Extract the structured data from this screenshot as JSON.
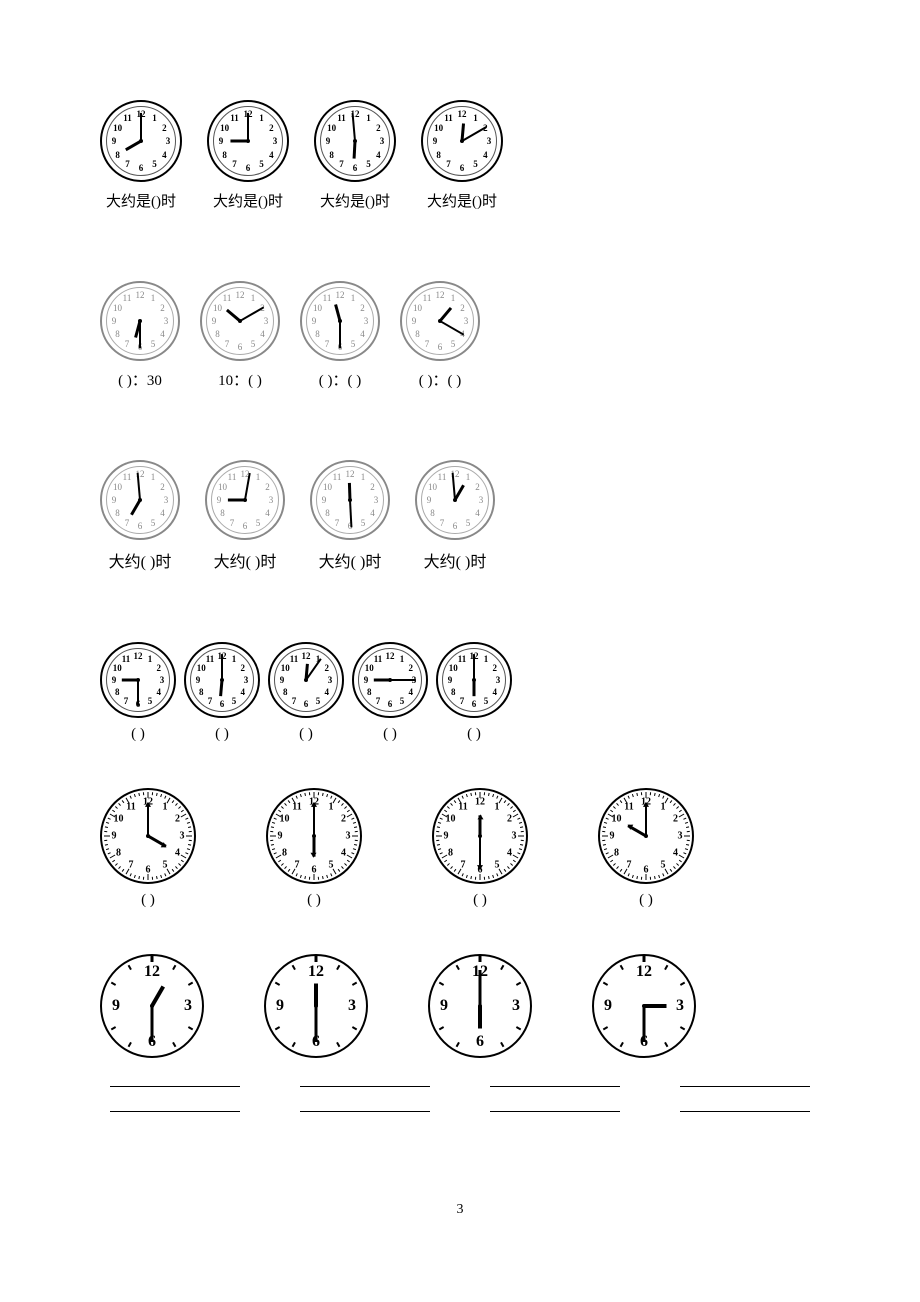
{
  "page_number": "3",
  "rows": [
    {
      "layout": "r1",
      "clock_size": 78,
      "style": "standard",
      "numbers_all": true,
      "caption_prefix": "大约是(",
      "caption_suffix": ")时",
      "clocks": [
        {
          "hour_angle": 240,
          "minute_angle": 0
        },
        {
          "hour_angle": 270,
          "minute_angle": 0
        },
        {
          "hour_angle": 183,
          "minute_angle": 355
        },
        {
          "hour_angle": 5,
          "minute_angle": 60
        }
      ]
    },
    {
      "layout": "r2",
      "clock_size": 76,
      "style": "faded",
      "numbers_all": true,
      "clocks": [
        {
          "hour_angle": 195,
          "minute_angle": 180,
          "caption": "(    )：30"
        },
        {
          "hour_angle": 310,
          "minute_angle": 60,
          "caption": "10：(    )"
        },
        {
          "hour_angle": 345,
          "minute_angle": 180,
          "caption": "(    )：(    )"
        },
        {
          "hour_angle": 40,
          "minute_angle": 120,
          "caption": "(    )：(    )"
        }
      ]
    },
    {
      "layout": "r3",
      "clock_size": 76,
      "style": "faded",
      "numbers_all": true,
      "caption_prefix": "大约(   )时",
      "caption_suffix": "",
      "clocks": [
        {
          "hour_angle": 210,
          "minute_angle": 355
        },
        {
          "hour_angle": 270,
          "minute_angle": 10
        },
        {
          "hour_angle": 358,
          "minute_angle": 177
        },
        {
          "hour_angle": 30,
          "minute_angle": 355
        }
      ]
    },
    {
      "layout": "r4",
      "clock_size": 72,
      "style": "standard",
      "numbers_all": true,
      "caption_prefix": "(        )",
      "caption_suffix": "",
      "clocks": [
        {
          "hour_angle": 270,
          "minute_angle": 180
        },
        {
          "hour_angle": 185,
          "minute_angle": 0
        },
        {
          "hour_angle": 5,
          "minute_angle": 35
        },
        {
          "hour_angle": 270,
          "minute_angle": 90
        },
        {
          "hour_angle": 180,
          "minute_angle": 0
        }
      ]
    },
    {
      "layout": "r5",
      "clock_size": 92,
      "style": "ticks",
      "numbers_all": true,
      "caption_prefix": "(          )",
      "caption_suffix": "",
      "clocks": [
        {
          "hour_angle": 120,
          "minute_angle": 0,
          "arrows": true
        },
        {
          "hour_angle": 180,
          "minute_angle": 0,
          "arrows": true
        },
        {
          "hour_angle": 0,
          "minute_angle": 180,
          "arrows": true
        },
        {
          "hour_angle": 300,
          "minute_angle": 0,
          "arrows": true
        }
      ]
    },
    {
      "layout": "r6",
      "clock_size": 100,
      "style": "quarter",
      "numbers_all": false,
      "underlines": true,
      "clocks": [
        {
          "hour_angle": 30,
          "minute_angle": 180
        },
        {
          "hour_angle": 0,
          "minute_angle": 180
        },
        {
          "hour_angle": 180,
          "minute_angle": 0
        },
        {
          "hour_angle": 90,
          "minute_angle": 180
        }
      ]
    }
  ]
}
